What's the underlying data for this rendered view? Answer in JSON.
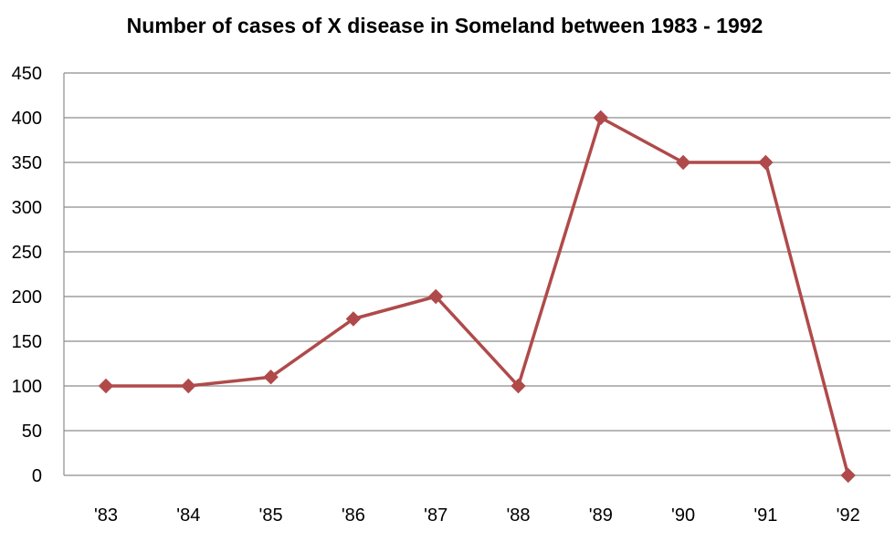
{
  "chart_data": {
    "type": "line",
    "title": "Number of cases of X disease in Someland between 1983  - 1992",
    "xlabel": "",
    "ylabel": "",
    "categories": [
      "'83",
      "'84",
      "'85",
      "'86",
      "'87",
      "'88",
      "'89",
      "'90",
      "'91",
      "'92"
    ],
    "series": [
      {
        "values": [
          100,
          100,
          110,
          175,
          200,
          100,
          400,
          350,
          350,
          0
        ],
        "color": "#b04a4a",
        "marker": "diamond"
      }
    ],
    "ylim": [
      0,
      450
    ],
    "yticks": [
      0,
      50,
      100,
      150,
      200,
      250,
      300,
      350,
      400,
      450
    ],
    "grid": true,
    "legend": "none"
  }
}
